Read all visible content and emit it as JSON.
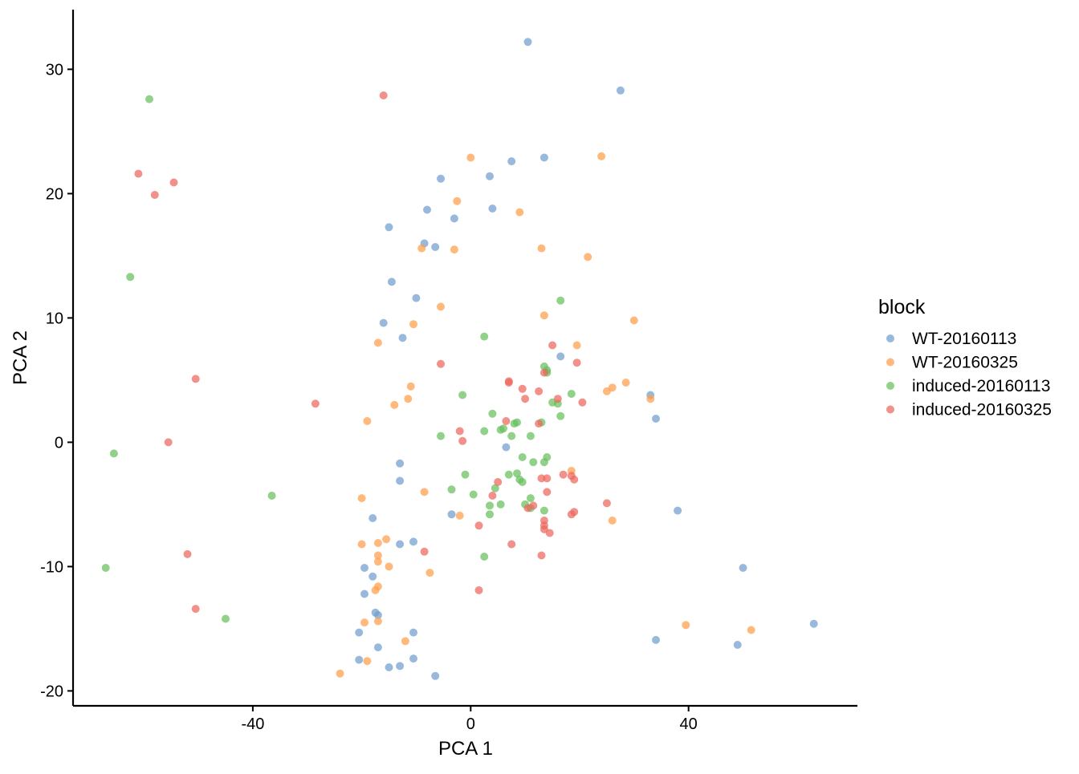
{
  "chart_data": {
    "type": "scatter",
    "title": "",
    "xlabel": "PCA 1",
    "ylabel": "PCA 2",
    "xlim": [
      -73,
      71
    ],
    "ylim": [
      -21.2,
      34.8
    ],
    "x_ticks": [
      -40,
      0,
      40
    ],
    "x_tick_labels": [
      "-40",
      "0",
      "40"
    ],
    "y_ticks": [
      -20,
      -10,
      0,
      10,
      20,
      30
    ],
    "y_tick_labels": [
      "-20",
      "-10",
      "0",
      "10",
      "20",
      "30"
    ],
    "grid": false,
    "legend": {
      "title": "block",
      "placement": "right"
    },
    "series": [
      {
        "name": "WT-20160113",
        "color": "#729ECE",
        "points": [
          [
            10.5,
            32.2
          ],
          [
            27.5,
            28.3
          ],
          [
            13.5,
            22.9
          ],
          [
            7.5,
            22.6
          ],
          [
            3.5,
            21.4
          ],
          [
            -5.5,
            21.2
          ],
          [
            4,
            18.8
          ],
          [
            -8,
            18.7
          ],
          [
            -3,
            18
          ],
          [
            -15,
            17.3
          ],
          [
            -8.5,
            16
          ],
          [
            -6.5,
            15.7
          ],
          [
            -14.5,
            12.9
          ],
          [
            -10,
            11.6
          ],
          [
            -16,
            9.6
          ],
          [
            -12.5,
            8.4
          ],
          [
            16.5,
            6.9
          ],
          [
            33,
            3.8
          ],
          [
            34,
            1.9
          ],
          [
            6.5,
            -0.4
          ],
          [
            -13,
            -1.7
          ],
          [
            -13,
            -3.1
          ],
          [
            38,
            -5.5
          ],
          [
            -3.5,
            -5.8
          ],
          [
            -18,
            -6.1
          ],
          [
            -13,
            -8.2
          ],
          [
            -10.5,
            -8
          ],
          [
            -19.5,
            -10.1
          ],
          [
            -18,
            -10.8
          ],
          [
            50,
            -10.1
          ],
          [
            -19.5,
            -12.2
          ],
          [
            -17.5,
            -13.7
          ],
          [
            -17,
            -13.9
          ],
          [
            63,
            -14.6
          ],
          [
            -20.5,
            -15.3
          ],
          [
            -10.5,
            -15.3
          ],
          [
            34,
            -15.9
          ],
          [
            49,
            -16.3
          ],
          [
            -17,
            -16.5
          ],
          [
            -20.5,
            -17.5
          ],
          [
            -10.5,
            -17.4
          ],
          [
            -15,
            -18.1
          ],
          [
            -13,
            -18
          ],
          [
            -6.5,
            -18.8
          ]
        ]
      },
      {
        "name": "WT-20160325",
        "color": "#FF9E4A",
        "points": [
          [
            0,
            22.9
          ],
          [
            24,
            23
          ],
          [
            -2.5,
            19.4
          ],
          [
            9,
            18.5
          ],
          [
            -9,
            15.6
          ],
          [
            -3,
            15.5
          ],
          [
            13,
            15.6
          ],
          [
            21.5,
            14.9
          ],
          [
            -5.5,
            10.9
          ],
          [
            13.5,
            10.2
          ],
          [
            30,
            9.8
          ],
          [
            -10.5,
            9.5
          ],
          [
            -17,
            8
          ],
          [
            19.5,
            7.8
          ],
          [
            28.5,
            4.8
          ],
          [
            26,
            4.4
          ],
          [
            25,
            4.1
          ],
          [
            -11,
            4.5
          ],
          [
            -11.5,
            3.5
          ],
          [
            -14,
            3
          ],
          [
            33,
            3.5
          ],
          [
            -19,
            1.7
          ],
          [
            18.5,
            -2.3
          ],
          [
            -8.5,
            -4
          ],
          [
            -20,
            -4.5
          ],
          [
            -2,
            -5.9
          ],
          [
            26,
            -6.3
          ],
          [
            -17,
            -8.1
          ],
          [
            -20,
            -8.2
          ],
          [
            -15.5,
            -7.8
          ],
          [
            -17,
            -9.1
          ],
          [
            -17,
            -9.6
          ],
          [
            -15,
            -10
          ],
          [
            -7.5,
            -10.5
          ],
          [
            -17.5,
            -11.9
          ],
          [
            -17,
            -11.6
          ],
          [
            39.5,
            -14.7
          ],
          [
            51.5,
            -15.1
          ],
          [
            -19.5,
            -14.5
          ],
          [
            -17,
            -14.4
          ],
          [
            -12,
            -16
          ],
          [
            -19,
            -17.6
          ],
          [
            -24,
            -18.6
          ]
        ]
      },
      {
        "name": "induced-20160113",
        "color": "#67BF5C",
        "points": [
          [
            -59,
            27.6
          ],
          [
            -62.5,
            13.3
          ],
          [
            16.5,
            11.4
          ],
          [
            2.5,
            8.5
          ],
          [
            13.5,
            6.1
          ],
          [
            14,
            5.8
          ],
          [
            14,
            5.6
          ],
          [
            -1.5,
            3.8
          ],
          [
            18.5,
            3.9
          ],
          [
            15,
            3.2
          ],
          [
            16,
            3.1
          ],
          [
            4,
            2.3
          ],
          [
            16.5,
            2.1
          ],
          [
            8,
            1.5
          ],
          [
            8.5,
            1.6
          ],
          [
            13,
            1.6
          ],
          [
            5.5,
            1
          ],
          [
            6,
            1.1
          ],
          [
            2.5,
            0.9
          ],
          [
            7.5,
            0.5
          ],
          [
            11,
            0.5
          ],
          [
            -5.5,
            0.5
          ],
          [
            -65.5,
            -0.9
          ],
          [
            9.5,
            -1.2
          ],
          [
            11.5,
            -1.6
          ],
          [
            13.5,
            -1.6
          ],
          [
            14,
            -1.2
          ],
          [
            -1,
            -2.6
          ],
          [
            7,
            -2.6
          ],
          [
            8.5,
            -2.5
          ],
          [
            9,
            -3
          ],
          [
            9.5,
            -3.2
          ],
          [
            4.5,
            -3.7
          ],
          [
            -3.5,
            -3.8
          ],
          [
            0.5,
            -4.2
          ],
          [
            11,
            -4.5
          ],
          [
            -36.5,
            -4.3
          ],
          [
            3.5,
            -5.1
          ],
          [
            5.5,
            -5
          ],
          [
            10,
            -5
          ],
          [
            11,
            -5.3
          ],
          [
            13.5,
            -5.5
          ],
          [
            3.5,
            -5.8
          ],
          [
            -67,
            -10.1
          ],
          [
            2.5,
            -9.2
          ],
          [
            -45,
            -14.2
          ]
        ]
      },
      {
        "name": "induced-20160325",
        "color": "#ED665D",
        "points": [
          [
            -16,
            27.9
          ],
          [
            -61,
            21.6
          ],
          [
            -54.5,
            20.9
          ],
          [
            -58,
            19.9
          ],
          [
            15,
            7.8
          ],
          [
            19.5,
            6.4
          ],
          [
            -5.5,
            6.3
          ],
          [
            13.5,
            5.6
          ],
          [
            -50.5,
            5.1
          ],
          [
            7,
            4.9
          ],
          [
            7,
            4.8
          ],
          [
            9.5,
            4.3
          ],
          [
            12.5,
            4.1
          ],
          [
            16,
            3.5
          ],
          [
            10,
            3.5
          ],
          [
            20.5,
            3.2
          ],
          [
            -28.5,
            3.1
          ],
          [
            6.5,
            1.7
          ],
          [
            12.5,
            1.5
          ],
          [
            -2,
            0.9
          ],
          [
            -1.5,
            0.1
          ],
          [
            -55.5,
            0
          ],
          [
            5,
            -3.2
          ],
          [
            14,
            -2.9
          ],
          [
            17,
            -2.6
          ],
          [
            18.5,
            -2.7
          ],
          [
            19,
            -3
          ],
          [
            13,
            -2.9
          ],
          [
            4,
            -4.3
          ],
          [
            14,
            -4
          ],
          [
            10.5,
            -5.3
          ],
          [
            11.5,
            -5.1
          ],
          [
            25,
            -4.9
          ],
          [
            19,
            -5.6
          ],
          [
            18.5,
            -5.8
          ],
          [
            13.5,
            -6.3
          ],
          [
            13.5,
            -6.7
          ],
          [
            1.5,
            -6.7
          ],
          [
            13.5,
            -7
          ],
          [
            14.5,
            -7.3
          ],
          [
            7.5,
            -8.2
          ],
          [
            -8.5,
            -8.8
          ],
          [
            -52,
            -9
          ],
          [
            13,
            -9.1
          ],
          [
            1.5,
            -11.9
          ],
          [
            -50.5,
            -13.4
          ]
        ]
      }
    ]
  }
}
